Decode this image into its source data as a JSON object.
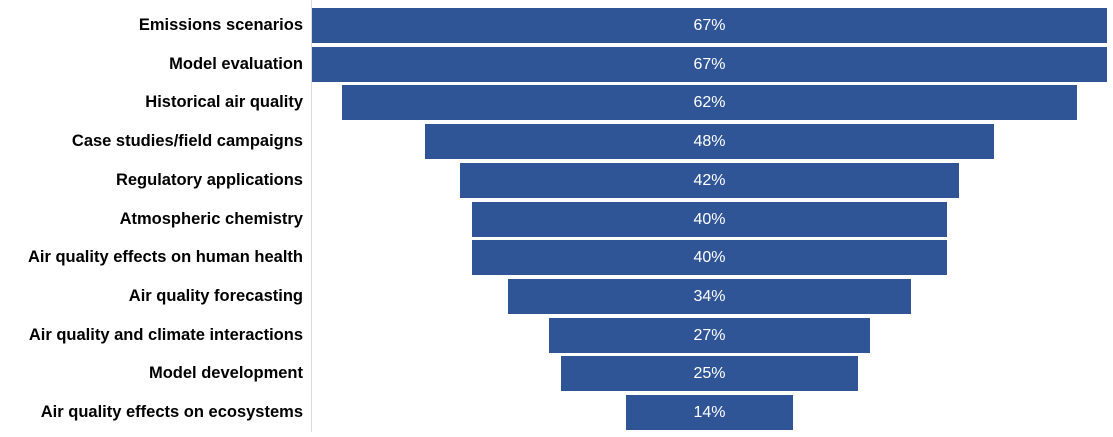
{
  "chart_data": {
    "type": "bar",
    "subtype": "funnel (centered horizontal bars)",
    "title": "",
    "xlabel": "",
    "ylabel": "",
    "orientation": "horizontal",
    "categories": [
      "Emissions scenarios",
      "Model evaluation",
      "Historical air quality",
      "Case studies/field campaigns",
      "Regulatory applications",
      "Atmospheric chemistry",
      "Air quality effects on human health",
      "Air quality forecasting",
      "Air quality and climate interactions",
      "Model development",
      "Air quality effects on ecosystems"
    ],
    "values": [
      67,
      67,
      62,
      48,
      42,
      40,
      40,
      34,
      27,
      25,
      14
    ],
    "value_labels": [
      "67%",
      "67%",
      "62%",
      "48%",
      "42%",
      "40%",
      "40%",
      "34%",
      "27%",
      "25%",
      "14%"
    ],
    "unit": "%",
    "bar_color": "#2f5597",
    "label_color": "#ffffff",
    "grid": false,
    "legend": "none"
  }
}
